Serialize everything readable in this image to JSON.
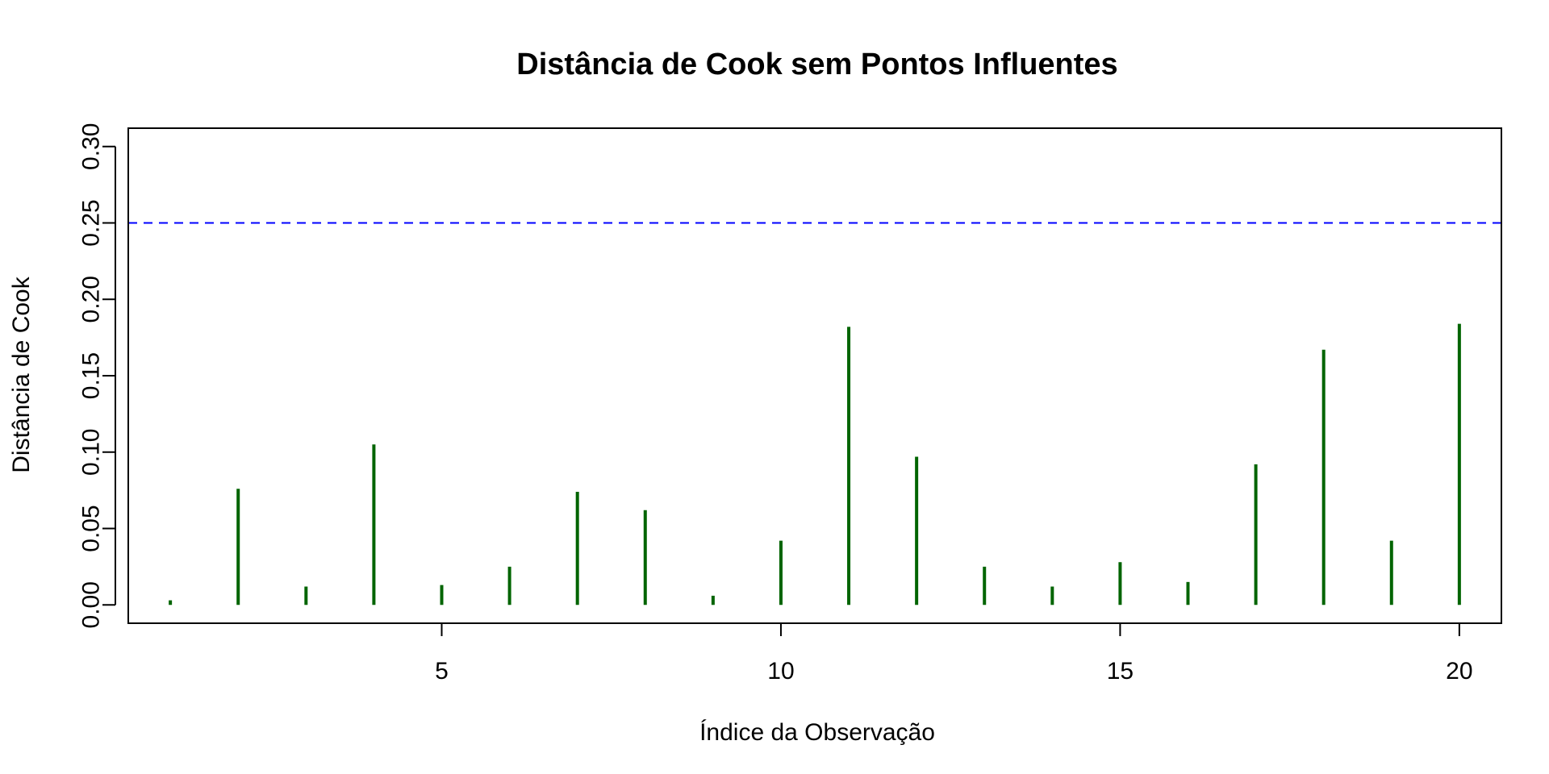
{
  "chart_data": {
    "type": "bar",
    "style": "histogram-spikes",
    "title": "Distância de Cook sem Pontos Influentes",
    "xlabel": "Índice da Observação",
    "ylabel": "Distância de Cook",
    "x": [
      1,
      2,
      3,
      4,
      5,
      6,
      7,
      8,
      9,
      10,
      11,
      12,
      13,
      14,
      15,
      16,
      17,
      18,
      19,
      20
    ],
    "values": [
      0.003,
      0.076,
      0.012,
      0.105,
      0.013,
      0.025,
      0.074,
      0.062,
      0.006,
      0.042,
      0.182,
      0.097,
      0.025,
      0.012,
      0.028,
      0.015,
      0.092,
      0.167,
      0.042,
      0.184
    ],
    "xlim": [
      0.38,
      20.62
    ],
    "ylim": [
      -0.012,
      0.312
    ],
    "xticks": [
      5,
      10,
      15,
      20
    ],
    "xtick_labels": [
      "5",
      "10",
      "15",
      "20"
    ],
    "yticks": [
      0,
      0.05,
      0.1,
      0.15,
      0.2,
      0.25,
      0.3
    ],
    "ytick_labels": [
      "0.00",
      "0.05",
      "0.10",
      "0.15",
      "0.20",
      "0.25",
      "0.30"
    ],
    "reference_line": {
      "y": 0.25,
      "style": "dashed",
      "color": "#0000ff"
    },
    "bar_color": "#006400",
    "grid": false,
    "legend": "none"
  }
}
